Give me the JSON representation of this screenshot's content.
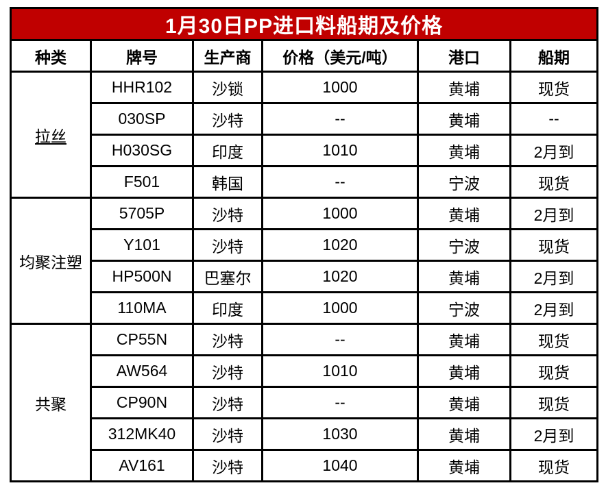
{
  "title": "1月30日PP进口料船期及价格",
  "columns": [
    "种类",
    "牌号",
    "生产商",
    "价格（美元/吨）",
    "港口",
    "船期"
  ],
  "groups": [
    {
      "category": "拉丝",
      "underline": true,
      "rows": [
        [
          "HHR102",
          "沙锁",
          "1000",
          "黄埔",
          "现货"
        ],
        [
          "030SP",
          "沙特",
          "--",
          "黄埔",
          "--"
        ],
        [
          "H030SG",
          "印度",
          "1010",
          "黄埔",
          "2月到"
        ],
        [
          "F501",
          "韩国",
          "--",
          "宁波",
          "现货"
        ]
      ]
    },
    {
      "category": "均聚注塑",
      "underline": false,
      "rows": [
        [
          "5705P",
          "沙特",
          "1000",
          "黄埔",
          "2月到"
        ],
        [
          "Y101",
          "沙特",
          "1020",
          "宁波",
          "现货"
        ],
        [
          "HP500N",
          "巴塞尔",
          "1020",
          "黄埔",
          "2月到"
        ],
        [
          "110MA",
          "印度",
          "1000",
          "宁波",
          "2月到"
        ]
      ]
    },
    {
      "category": "共聚",
      "underline": false,
      "rows": [
        [
          "CP55N",
          "沙特",
          "--",
          "黄埔",
          "现货"
        ],
        [
          "AW564",
          "沙特",
          "1010",
          "黄埔",
          "现货"
        ],
        [
          "CP90N",
          "沙特",
          "--",
          "黄埔",
          "现货"
        ],
        [
          "312MK40",
          "沙特",
          "1030",
          "黄埔",
          "2月到"
        ],
        [
          "AV161",
          "沙特",
          "1040",
          "黄埔",
          "现货"
        ]
      ]
    }
  ],
  "colors": {
    "title_bg": "#C00000",
    "title_text": "#FFFFFF",
    "border": "#000000",
    "cell_bg": "#FFFFFF",
    "cell_text": "#000000"
  }
}
